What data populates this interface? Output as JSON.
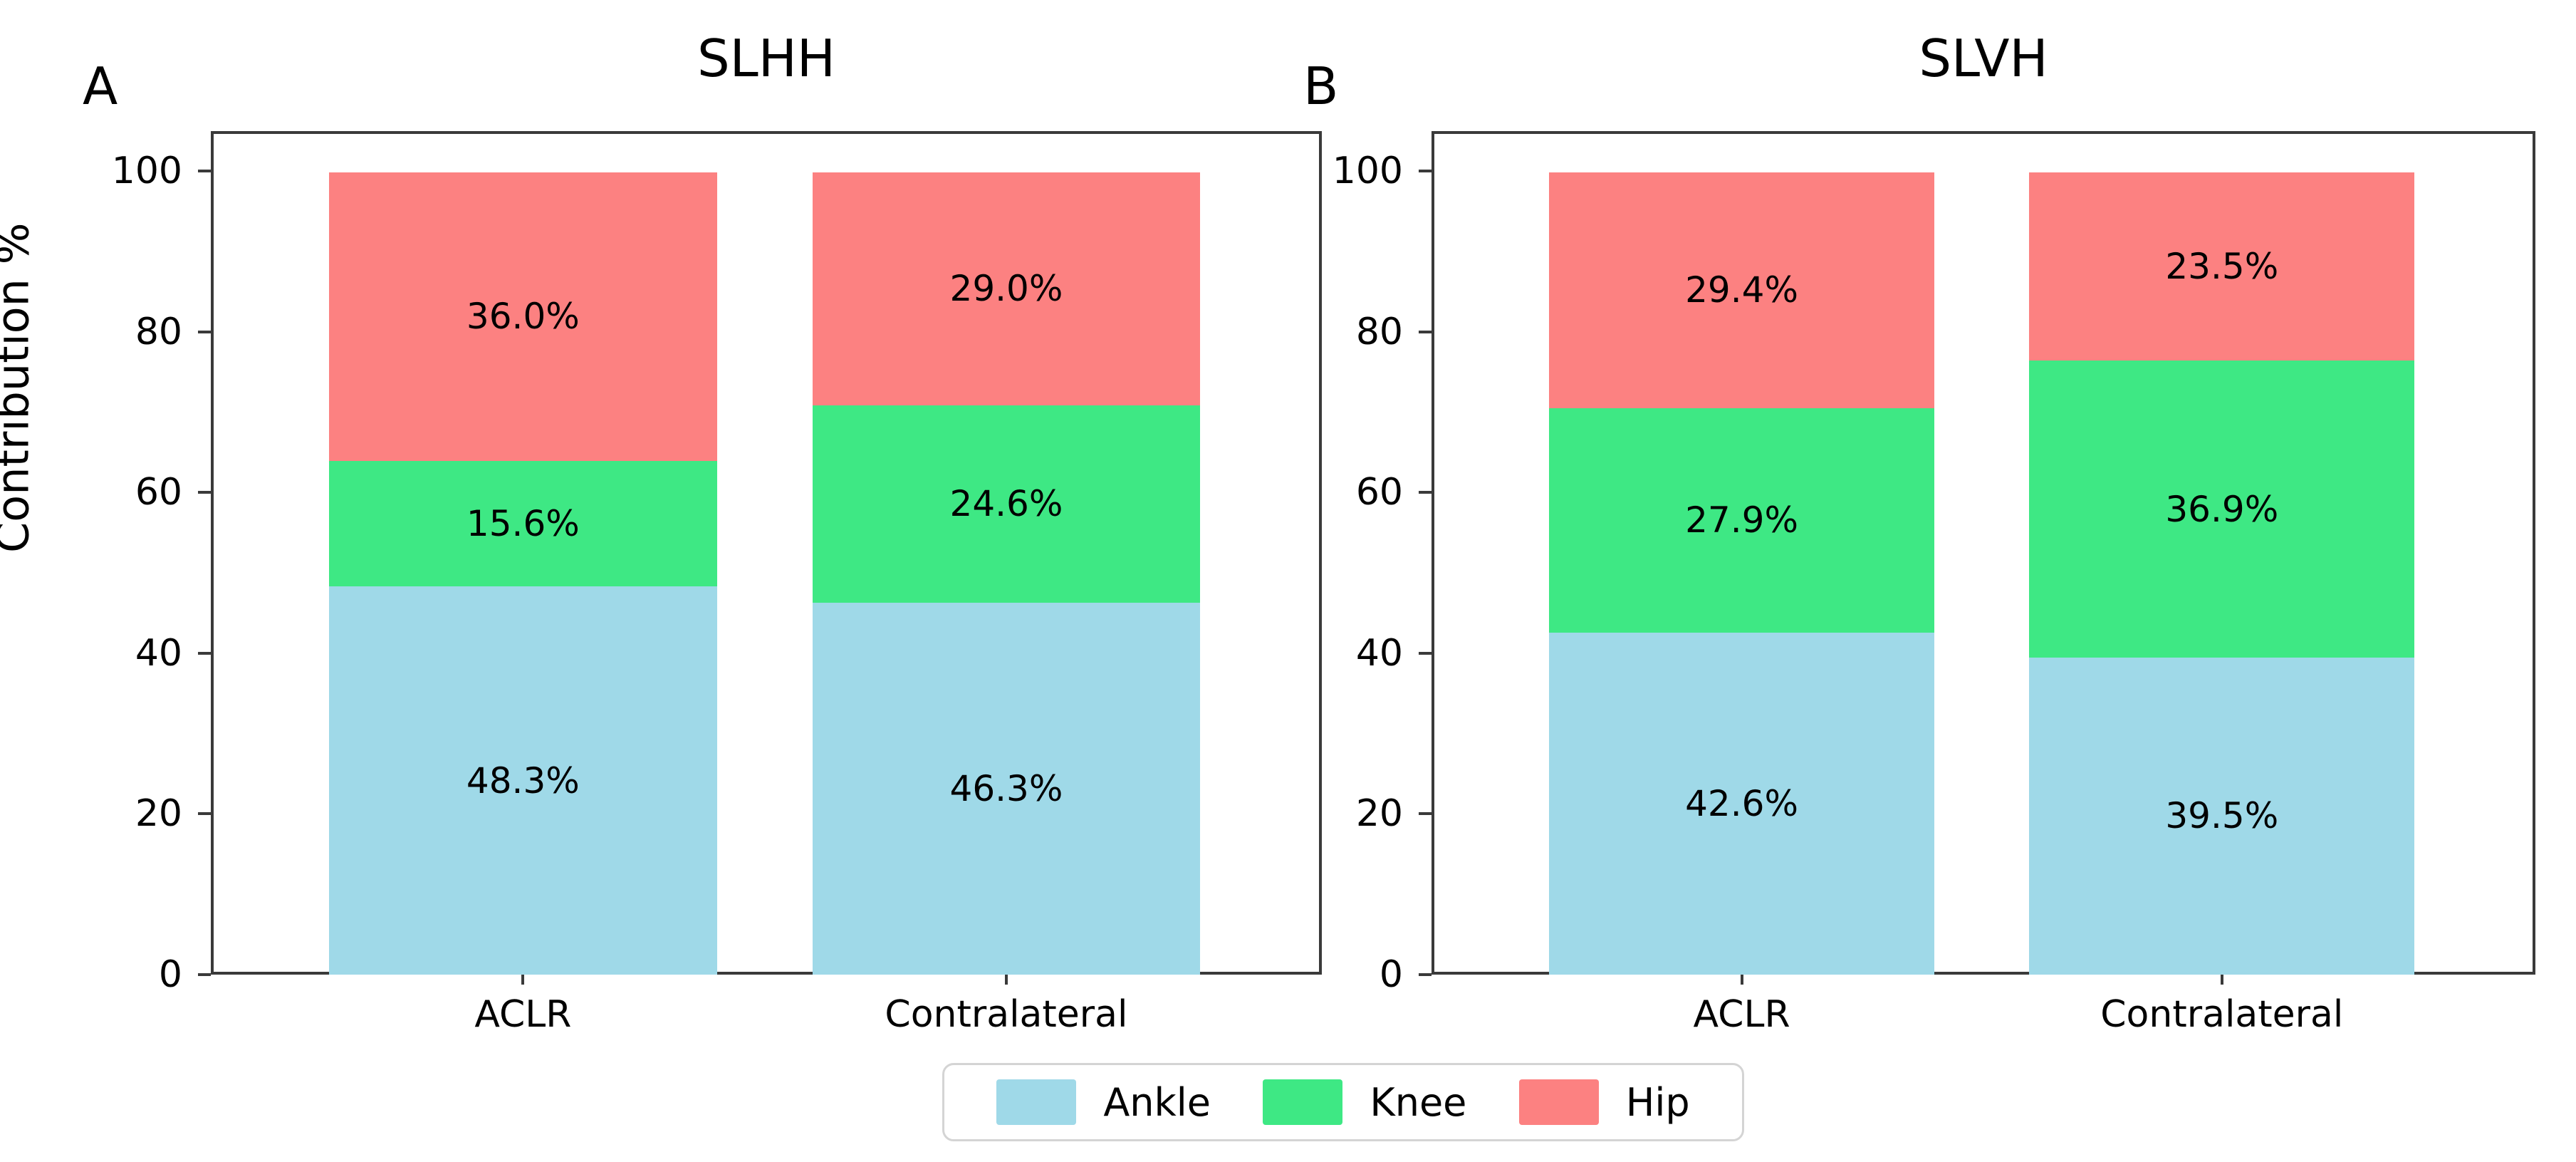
{
  "figure": {
    "ylabel": "Contribution %",
    "background": "#ffffff",
    "spine_color": "#3a3a3a"
  },
  "legend": {
    "items": [
      {
        "label": "Ankle",
        "color": "#9FD9E8"
      },
      {
        "label": "Knee",
        "color": "#3EE884"
      },
      {
        "label": "Hip",
        "color": "#FC8181"
      }
    ]
  },
  "chart_data": [
    {
      "type": "bar",
      "stacked": true,
      "panel_letter": "A",
      "title": "SLHH",
      "categories": [
        "ACLR",
        "Contralateral"
      ],
      "series": [
        {
          "name": "Ankle",
          "color": "#9FD9E8",
          "values": [
            48.3,
            46.3
          ]
        },
        {
          "name": "Knee",
          "color": "#3EE884",
          "values": [
            15.6,
            24.6
          ]
        },
        {
          "name": "Hip",
          "color": "#FC8181",
          "values": [
            36.0,
            29.0
          ]
        }
      ],
      "bar_labels": [
        [
          "48.3%",
          "15.6%",
          "36.0%"
        ],
        [
          "46.3%",
          "24.6%",
          "29.0%"
        ]
      ],
      "xlabel": "",
      "ylabel": "Contribution %",
      "ylim": [
        0,
        105
      ],
      "yticks": [
        0,
        20,
        40,
        60,
        80,
        100
      ],
      "grid": false,
      "legend_position": "bottom-center"
    },
    {
      "type": "bar",
      "stacked": true,
      "panel_letter": "B",
      "title": "SLVH",
      "categories": [
        "ACLR",
        "Contralateral"
      ],
      "series": [
        {
          "name": "Ankle",
          "color": "#9FD9E8",
          "values": [
            42.6,
            39.5
          ]
        },
        {
          "name": "Knee",
          "color": "#3EE884",
          "values": [
            27.9,
            36.9
          ]
        },
        {
          "name": "Hip",
          "color": "#FC8181",
          "values": [
            29.4,
            23.5
          ]
        }
      ],
      "bar_labels": [
        [
          "42.6%",
          "27.9%",
          "29.4%"
        ],
        [
          "39.5%",
          "36.9%",
          "23.5%"
        ]
      ],
      "xlabel": "",
      "ylabel": "",
      "ylim": [
        0,
        105
      ],
      "yticks": [
        0,
        20,
        40,
        60,
        80,
        100
      ],
      "grid": false,
      "legend_position": "bottom-center"
    }
  ]
}
